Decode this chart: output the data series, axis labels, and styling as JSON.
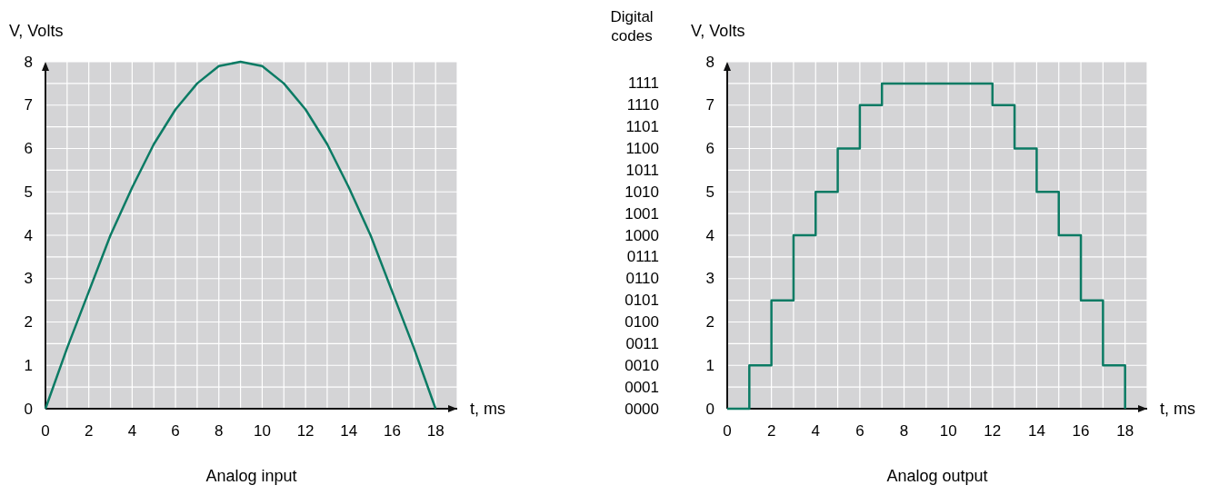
{
  "chart_data": [
    {
      "type": "line",
      "title": "Analog input",
      "xlabel": "t, ms",
      "ylabel": "V, Volts",
      "xlim": [
        0,
        19
      ],
      "ylim": [
        0,
        8
      ],
      "xticks": [
        0,
        {
          "value": 1,
          "label": null
        },
        2,
        {
          "value": 3,
          "label": null
        },
        4,
        {
          "value": 5,
          "label": null
        },
        6,
        {
          "value": 7,
          "label": null
        },
        8,
        {
          "value": 9,
          "label": null
        },
        10,
        {
          "value": 11,
          "label": null
        },
        12,
        {
          "value": 13,
          "label": null
        },
        14,
        {
          "value": 15,
          "label": null
        },
        16,
        {
          "value": 17,
          "label": null
        },
        18,
        {
          "value": 19,
          "label": null
        }
      ],
      "yticks": [
        0,
        {
          "value": 0.5,
          "label": null
        },
        1,
        {
          "value": 1.5,
          "label": null
        },
        2,
        {
          "value": 2.5,
          "label": null
        },
        3,
        {
          "value": 3.5,
          "label": null
        },
        4,
        {
          "value": 4.5,
          "label": null
        },
        5,
        {
          "value": 5.5,
          "label": null
        },
        6,
        {
          "value": 6.5,
          "label": null
        },
        7,
        {
          "value": 7.5,
          "label": null
        },
        8
      ],
      "grid": true,
      "x": [
        0,
        1,
        2,
        3,
        4,
        5,
        6,
        7,
        8,
        9,
        10,
        11,
        12,
        13,
        14,
        15,
        16,
        17,
        18
      ],
      "series": [
        {
          "color": "#0b7b64",
          "values": [
            0,
            1.4,
            2.7,
            4,
            5.1,
            6.1,
            6.9,
            7.5,
            7.9,
            8,
            7.9,
            7.5,
            6.9,
            6.1,
            5.1,
            4,
            2.7,
            1.4,
            0
          ]
        }
      ]
    },
    {
      "type": "step",
      "title": "Analog output",
      "xlabel": "t, ms",
      "ylabel": "V, Volts",
      "y2label": "Digital codes",
      "xlim": [
        0,
        19
      ],
      "ylim": [
        0,
        8
      ],
      "xticks": [
        0,
        {
          "value": 1,
          "label": null
        },
        2,
        {
          "value": 3,
          "label": null
        },
        4,
        {
          "value": 5,
          "label": null
        },
        6,
        {
          "value": 7,
          "label": null
        },
        8,
        {
          "value": 9,
          "label": null
        },
        10,
        {
          "value": 11,
          "label": null
        },
        12,
        {
          "value": 13,
          "label": null
        },
        14,
        {
          "value": 15,
          "label": null
        },
        16,
        {
          "value": 17,
          "label": null
        },
        18,
        {
          "value": 19,
          "label": null
        }
      ],
      "yticks": [
        0,
        {
          "value": 0.5,
          "label": null
        },
        1,
        {
          "value": 1.5,
          "label": null
        },
        2,
        {
          "value": 2.5,
          "label": null
        },
        3,
        {
          "value": 3.5,
          "label": null
        },
        4,
        {
          "value": 4.5,
          "label": null
        },
        5,
        {
          "value": 5.5,
          "label": null
        },
        6,
        {
          "value": 6.5,
          "label": null
        },
        7,
        {
          "value": 7.5,
          "label": null
        },
        8
      ],
      "annotations": [
        "0000",
        "0001",
        "0010",
        "0011",
        "0100",
        "0101",
        "0110",
        "0111",
        "1000",
        "1001",
        "1010",
        "1011",
        "1100",
        "1101",
        "1110",
        "1111"
      ],
      "grid": true,
      "x": [
        0,
        1,
        2,
        3,
        4,
        5,
        6,
        7,
        12,
        13,
        14,
        15,
        16,
        17,
        18
      ],
      "series": [
        {
          "color": "#0b7b64",
          "values": [
            0,
            1,
            2.5,
            4,
            5,
            6,
            7,
            7.5,
            7,
            6,
            5,
            4,
            2.5,
            1,
            0
          ]
        }
      ]
    }
  ]
}
